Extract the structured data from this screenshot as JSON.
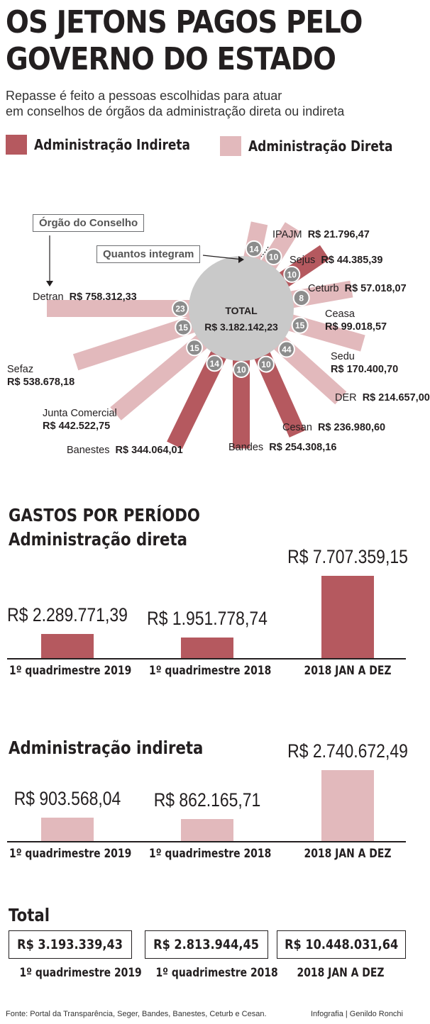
{
  "headline": [
    "OS JETONS PAGOS PELO",
    "GOVERNO DO ESTADO"
  ],
  "subtitle": [
    "Repasse é feito a pessoas escolhidas para atuar",
    "em conselhos de órgãos da administração direta ou indireta"
  ],
  "colors": {
    "indireta": "#b5595f",
    "direta": "#e2b9bc",
    "hub": "#c9c9c9",
    "badge": "#8c8c8c",
    "axis": "#231f20"
  },
  "legend": [
    {
      "label": "Administração Indireta",
      "color": "#b5595f"
    },
    {
      "label": "Administração Direta",
      "color": "#e2b9bc"
    }
  ],
  "callouts": {
    "orgao": "Órgão do Conselho",
    "integram": "Quantos integram"
  },
  "chart_data": [
    {
      "type": "radial-bar",
      "center_label": "TOTAL",
      "center_value": "R$ 3.182.142,23",
      "items": [
        {
          "org": "IPAJM",
          "value_label": "R$ 21.796,47",
          "value": 21796.47,
          "members": 14,
          "members_label": "14",
          "group": "direta"
        },
        {
          "org": "Sejus",
          "value_label": "R$ 44.385,39",
          "value": 44385.39,
          "members": 10,
          "members_label": "10",
          "group": "direta"
        },
        {
          "org": "Ceturb",
          "value_label": "R$ 57.018,07",
          "value": 57018.07,
          "members": 10,
          "members_label": "10",
          "group": "indireta"
        },
        {
          "org": "Ceasa",
          "value_label": "R$ 99.018,57",
          "value": 99018.57,
          "members": 8,
          "members_label": "8",
          "group": "direta"
        },
        {
          "org": "Sedu",
          "value_label": "R$ 170.400,70",
          "value": 170400.7,
          "members": 15,
          "members_label": "15",
          "group": "direta"
        },
        {
          "org": "DER",
          "value_label": "R$ 214.657,00",
          "value": 214657.0,
          "members": 44,
          "members_label": "44",
          "group": "direta"
        },
        {
          "org": "Cesan",
          "value_label": "R$ 236.980,60",
          "value": 236980.6,
          "members": 10,
          "members_label": "10",
          "group": "indireta"
        },
        {
          "org": "Bandes",
          "value_label": "R$ 254.308,16",
          "value": 254308.16,
          "members": 10,
          "members_label": "10",
          "group": "indireta"
        },
        {
          "org": "Banestes",
          "value_label": "R$ 344.064,01",
          "value": 344064.01,
          "members": 14,
          "members_label": "14",
          "group": "indireta"
        },
        {
          "org": "Junta Comercial",
          "value_label": "R$ 442.522,75",
          "value": 442522.75,
          "members": 15,
          "members_label": "15",
          "group": "direta"
        },
        {
          "org": "Sefaz",
          "value_label": "R$ 538.678,18",
          "value": 538678.18,
          "members": 15,
          "members_label": "15",
          "group": "direta"
        },
        {
          "org": "Detran",
          "value_label": "R$ 758.312,33",
          "value": 758312.33,
          "members": 23,
          "members_label": "23",
          "group": "direta"
        }
      ]
    },
    {
      "type": "bar",
      "title": "Administração direta",
      "categories": [
        "1º quadrimestre 2019",
        "1º quadrimestre 2018",
        "2018 JAN A DEZ"
      ],
      "values": [
        2289771.39,
        1951778.74,
        7707359.15
      ],
      "value_labels": [
        "R$ 2.289.771,39",
        "R$ 1.951.778,74",
        "R$ 7.707.359,15"
      ],
      "ylim": [
        0,
        7707359.15
      ],
      "color": "#b5595f"
    },
    {
      "type": "bar",
      "title": "Administração indireta",
      "categories": [
        "1º quadrimestre 2019",
        "1º quadrimestre 2018",
        "2018 JAN A DEZ"
      ],
      "values": [
        903568.04,
        862165.71,
        2740672.49
      ],
      "value_labels": [
        "R$ 903.568,04",
        "R$ 862.165,71",
        "R$ 2.740.672,49"
      ],
      "ylim": [
        0,
        2740672.49
      ],
      "color": "#e2b9bc"
    }
  ],
  "periodo_title": "GASTOS POR PERÍODO",
  "total": {
    "title": "Total",
    "items": [
      {
        "value": "R$ 3.193.339,43",
        "label": "1º quadrimestre 2019"
      },
      {
        "value": "R$ 2.813.944,45",
        "label": "1º quadrimestre 2018"
      },
      {
        "value": "R$ 10.448.031,64",
        "label": "2018 JAN A DEZ"
      }
    ]
  },
  "footer": {
    "source": "Fonte: Portal da Transparência, Seger, Bandes, Banestes, Ceturb e Cesan.",
    "credit": "Infografia | Genildo Ronchi"
  }
}
